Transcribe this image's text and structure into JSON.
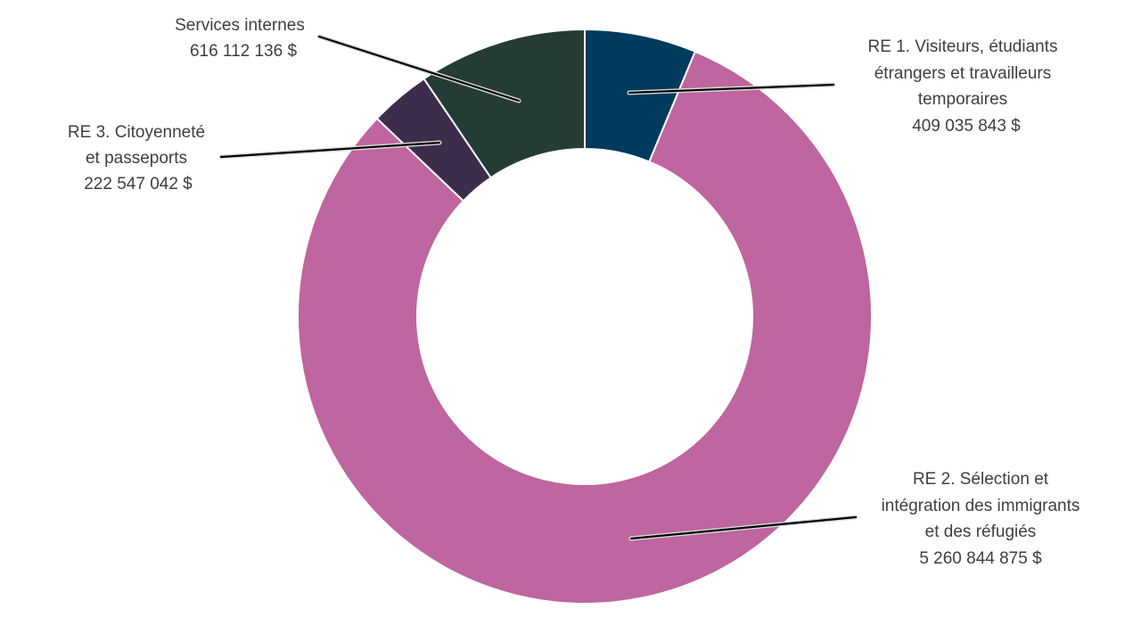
{
  "chart_data": {
    "type": "pie",
    "donut": true,
    "start_angle_deg": 0,
    "direction": "clockwise",
    "slices": [
      {
        "label_lines": [
          "RE 1. Visiteurs, étudiants",
          "étrangers et travailleurs",
          "temporaires"
        ],
        "value_text": "409 035 843 $",
        "value": 409035843,
        "color": "#003a5d"
      },
      {
        "label_lines": [
          "RE 2. Sélection et",
          "intégration des immigrants",
          "et des réfugiés"
        ],
        "value_text": "5 260 844 875 $",
        "value": 5260844875,
        "color": "#bf659f"
      },
      {
        "label_lines": [
          "RE 3. Citoyenneté",
          "et passeports"
        ],
        "value_text": "222 547 042 $",
        "value": 222547042,
        "color": "#3d2d4c"
      },
      {
        "label_lines": [
          "Services internes"
        ],
        "value_text": "616 112 136 $",
        "value": 616112136,
        "color": "#253c34"
      }
    ]
  }
}
